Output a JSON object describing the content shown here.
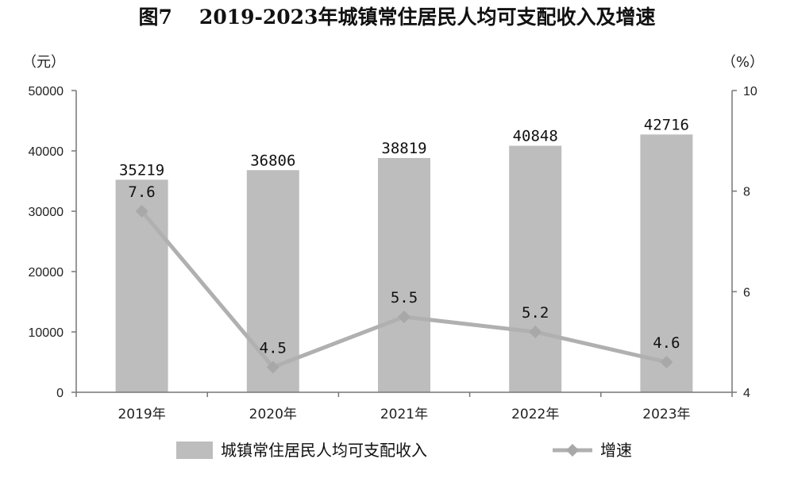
{
  "title": {
    "figure": "图7",
    "text": "2019-2023年城镇常住居民人均可支配收入及增速"
  },
  "chart_data": {
    "type": "bar",
    "categories": [
      "2019年",
      "2020年",
      "2021年",
      "2022年",
      "2023年"
    ],
    "series": [
      {
        "name": "城镇常住居民人均可支配收入",
        "type": "bar",
        "axis": "left",
        "values": [
          35219,
          36806,
          38819,
          40848,
          42716
        ],
        "color": "#bdbdbd"
      },
      {
        "name": "增速",
        "type": "line",
        "axis": "right",
        "values": [
          7.6,
          4.5,
          5.5,
          5.2,
          4.6
        ],
        "color": "#b0b0b0",
        "marker": "diamond"
      }
    ],
    "left_axis": {
      "unit": "（元）",
      "min": 0,
      "max": 50000,
      "ticks": [
        0,
        10000,
        20000,
        30000,
        40000,
        50000
      ]
    },
    "right_axis": {
      "unit": "（%）",
      "min": 4,
      "max": 10,
      "ticks": [
        4,
        6,
        8,
        10
      ]
    },
    "bar_labels": [
      "35219",
      "36806",
      "38819",
      "40848",
      "42716"
    ],
    "line_labels": [
      "7.6",
      "4.5",
      "5.5",
      "5.2",
      "4.6"
    ],
    "legend": {
      "position": "bottom",
      "entries": [
        "城镇常住居民人均可支配收入",
        "增速"
      ]
    },
    "grid": false
  }
}
